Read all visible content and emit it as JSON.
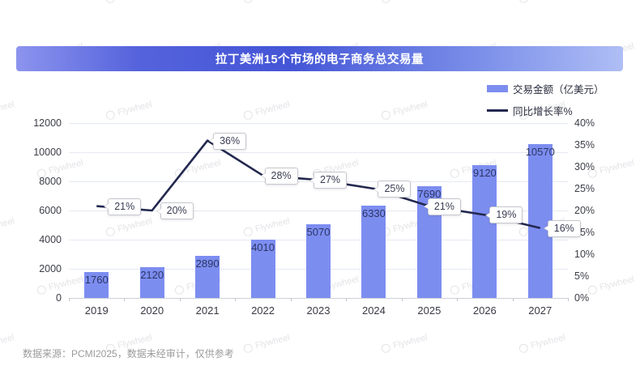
{
  "page": {
    "title": "拉丁美洲15个市场的电子商务总交易量",
    "footer": "数据来源：PCMI2025，数据未经审计，仅供参考",
    "watermark_text": "Flywheel"
  },
  "legend": {
    "items": [
      {
        "label": "交易金额（亿美元）",
        "swatch": "bar-swatch",
        "color": "#7C8DF0"
      },
      {
        "label": "同比增长率%",
        "swatch": "line-swatch",
        "color": "#23284F"
      }
    ]
  },
  "colors": {
    "banner_left": "#8C94EE",
    "banner_mid": "#4455D6",
    "banner_right": "#AFBEF5",
    "bar": "#7C8DF0",
    "line": "#23284F",
    "bar_label_text": "#2C3565",
    "grid": "#E6E9F3",
    "axis_baseline": "#CDCFD9",
    "title_text": "#FFFFFF"
  },
  "chart_data": {
    "type": "bar",
    "subtype": "bar-line-combo",
    "title": "拉丁美洲15个市场的电子商务总交易量",
    "categories": [
      "2019",
      "2020",
      "2021",
      "2022",
      "2023",
      "2024",
      "2025",
      "2026",
      "2027"
    ],
    "series": [
      {
        "name": "交易金额（亿美元）",
        "type": "bar",
        "axis": "left",
        "unit": "",
        "values": [
          1760,
          2120,
          2890,
          4010,
          5070,
          6330,
          7690,
          9120,
          10570
        ]
      },
      {
        "name": "同比增长率%",
        "type": "line",
        "axis": "right",
        "unit": "%",
        "values": [
          21,
          20,
          36,
          28,
          27,
          25,
          21,
          19,
          16
        ]
      }
    ],
    "left_axis": {
      "min": 0,
      "max": 12000,
      "step": 2000,
      "tick_labels": [
        "0",
        "2000",
        "4000",
        "6000",
        "8000",
        "10000",
        "12000"
      ]
    },
    "right_axis": {
      "min": 0,
      "max": 40,
      "step": 5,
      "unit": "%",
      "tick_labels": [
        "0%",
        "5%",
        "10%",
        "15%",
        "20%",
        "25%",
        "30%",
        "35%",
        "40%"
      ]
    },
    "grid": true,
    "legend_position": "top-right",
    "xlabel": "",
    "ylabel": ""
  }
}
